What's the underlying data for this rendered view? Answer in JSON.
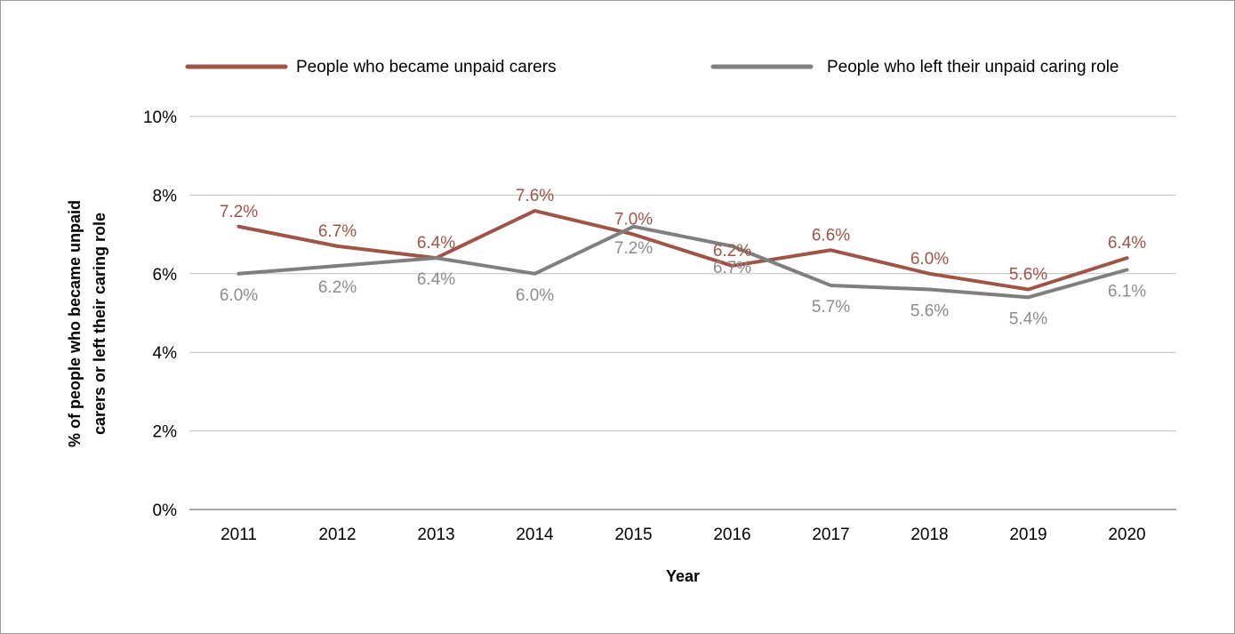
{
  "chart_data": {
    "type": "line",
    "title": "",
    "xlabel": "Year",
    "ylabel": "% of people who became unpaid carers or left their caring role",
    "ylabel_lines": [
      "% of people who became unpaid",
      "carers or left their caring role"
    ],
    "categories": [
      "2011",
      "2012",
      "2013",
      "2014",
      "2015",
      "2016",
      "2017",
      "2018",
      "2019",
      "2020"
    ],
    "ylim": [
      0,
      10
    ],
    "yticks": [
      0,
      2,
      4,
      6,
      8,
      10
    ],
    "ytick_labels": [
      "0%",
      "2%",
      "4%",
      "6%",
      "8%",
      "10%"
    ],
    "grid": true,
    "legend_position": "top",
    "series": [
      {
        "name": "People who became unpaid carers",
        "color": "#9E5446",
        "values": [
          7.2,
          6.7,
          6.4,
          7.6,
          7.0,
          6.2,
          6.6,
          6.0,
          5.6,
          6.4
        ],
        "labels": [
          "7.2%",
          "6.7%",
          "6.4%",
          "7.6%",
          "7.0%",
          "6.2%",
          "6.6%",
          "6.0%",
          "5.6%",
          "6.4%"
        ],
        "label_position": [
          "above",
          "above",
          "above",
          "above",
          "above",
          "above",
          "above",
          "above",
          "above",
          "above"
        ]
      },
      {
        "name": "People who left their unpaid caring role",
        "color": "#7F7F7F",
        "label_color": "#8C8C8C",
        "values": [
          6.0,
          6.2,
          6.4,
          6.0,
          7.2,
          6.7,
          5.7,
          5.6,
          5.4,
          6.1
        ],
        "labels": [
          "6.0%",
          "6.2%",
          "6.4%",
          "6.0%",
          "7.2%",
          "6.7%",
          "5.7%",
          "5.6%",
          "5.4%",
          "6.1%"
        ],
        "label_position": [
          "below",
          "below",
          "below",
          "below",
          "below",
          "below",
          "below",
          "below",
          "below",
          "below"
        ]
      }
    ]
  }
}
